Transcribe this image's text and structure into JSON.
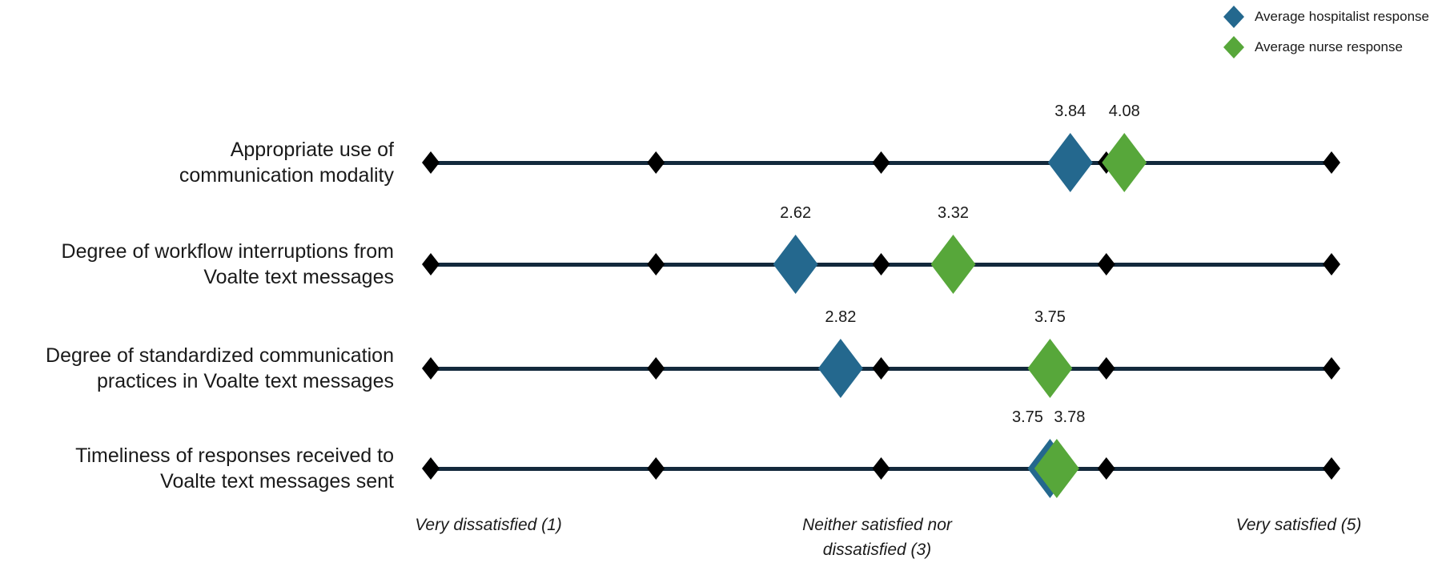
{
  "colors": {
    "hospitalist": "#24688E",
    "nurse": "#57A73A",
    "line": "#13293C",
    "tick": "#000000",
    "text": "#1a1a1a"
  },
  "legend": [
    {
      "label": "Average hospitalist response",
      "series": "hospitalist"
    },
    {
      "label": "Average nurse response",
      "series": "nurse"
    }
  ],
  "chart_data": {
    "type": "scatter",
    "subtype": "horizontal-dot-plot",
    "scale": {
      "min": 1,
      "max": 5,
      "ticks": [
        1,
        2,
        3,
        4,
        5
      ]
    },
    "legend_position": "top-right",
    "series_names": [
      "Average hospitalist response",
      "Average nurse response"
    ],
    "rows": [
      {
        "label_lines": [
          "Appropriate use of",
          "communication modality"
        ],
        "hospitalist": {
          "value": 3.84,
          "label": "3.84",
          "label_dx": 0
        },
        "nurse": {
          "value": 4.08,
          "label": "4.08",
          "label_dx": 0
        }
      },
      {
        "label_lines": [
          "Degree of workflow interruptions from",
          "Voalte text messages"
        ],
        "hospitalist": {
          "value": 2.62,
          "label": "2.62",
          "label_dx": 0
        },
        "nurse": {
          "value": 3.32,
          "label": "3.32",
          "label_dx": 0
        }
      },
      {
        "label_lines": [
          "Degree of standardized communication",
          "practices in Voalte text messages"
        ],
        "hospitalist": {
          "value": 2.82,
          "label": "2.82",
          "label_dx": 0
        },
        "nurse": {
          "value": 3.75,
          "label": "3.75",
          "label_dx": 0
        }
      },
      {
        "label_lines": [
          "Timeliness of responses received to",
          "Voalte text messages sent"
        ],
        "hospitalist": {
          "value": 3.75,
          "label": "3.75",
          "label_dx": -28
        },
        "nurse": {
          "value": 3.78,
          "label": "3.78",
          "label_dx": 16
        }
      }
    ],
    "axis_labels": [
      {
        "lines": [
          "Very dissatisfied (1)"
        ],
        "anchor_value": 1
      },
      {
        "lines": [
          "Neither satisfied nor",
          "dissatisfied (3)"
        ],
        "anchor_value": 3
      },
      {
        "lines": [
          "Very satisfied (5)"
        ],
        "anchor_value": 5
      }
    ]
  }
}
